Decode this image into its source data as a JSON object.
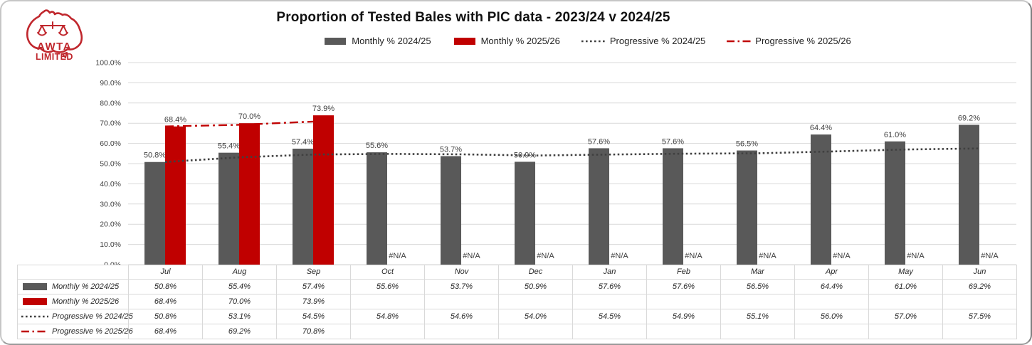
{
  "logo": {
    "name": "AWTA Limited",
    "line1": "AWTA",
    "line2": "LIMITED",
    "color": "#c0272d"
  },
  "title": "Proportion of Tested Bales with PIC data - 2023/24 v 2024/25",
  "colors": {
    "bar_gray": "#595959",
    "bar_red": "#c00000",
    "dotted_line": "#404040",
    "dashdot_line": "#c00000",
    "data_label": "#404040",
    "grid": "#d9d9d9",
    "axis_text": "#404040",
    "table_text": "#262626"
  },
  "chart_data": {
    "type": "bar",
    "title": "Proportion of Tested Bales with PIC data - 2023/24 v 2024/25",
    "categories": [
      "Jul",
      "Aug",
      "Sep",
      "Oct",
      "Nov",
      "Dec",
      "Jan",
      "Feb",
      "Mar",
      "Apr",
      "May",
      "Jun"
    ],
    "xlabel": "",
    "ylabel": "",
    "ylim": [
      0,
      100
    ],
    "ytick_step": 10,
    "ytick_suffix": "%",
    "grid": true,
    "legend_position": "top",
    "na_label": "#N/A",
    "series": [
      {
        "name": "Monthly % 2024/25",
        "type": "bar",
        "style": "bar",
        "color": "#595959",
        "values": [
          50.8,
          55.4,
          57.4,
          55.6,
          53.7,
          50.9,
          57.6,
          57.6,
          56.5,
          64.4,
          61.0,
          69.2
        ],
        "labels": [
          "50.8%",
          "55.4%",
          "57.4%",
          "55.6%",
          "53.7%",
          "50.9%",
          "57.6%",
          "57.6%",
          "56.5%",
          "64.4%",
          "61.0%",
          "69.2%"
        ],
        "table_values": [
          "50.8%",
          "55.4%",
          "57.4%",
          "55.6%",
          "53.7%",
          "50.9%",
          "57.6%",
          "57.6%",
          "56.5%",
          "64.4%",
          "61.0%",
          "69.2%"
        ]
      },
      {
        "name": "Monthly % 2025/26",
        "type": "bar",
        "style": "bar",
        "color": "#c00000",
        "values": [
          68.4,
          70.0,
          73.9,
          null,
          null,
          null,
          null,
          null,
          null,
          null,
          null,
          null
        ],
        "labels": [
          "68.4%",
          "70.0%",
          "73.9%",
          "#N/A",
          "#N/A",
          "#N/A",
          "#N/A",
          "#N/A",
          "#N/A",
          "#N/A",
          "#N/A",
          "#N/A"
        ],
        "table_values": [
          "68.4%",
          "70.0%",
          "73.9%",
          "",
          "",
          "",
          "",
          "",
          "",
          "",
          "",
          ""
        ]
      },
      {
        "name": "Progressive % 2024/25",
        "type": "line",
        "style": "dotted",
        "color": "#404040",
        "values": [
          50.8,
          53.1,
          54.5,
          54.8,
          54.6,
          54.0,
          54.5,
          54.9,
          55.1,
          56.0,
          57.0,
          57.5
        ],
        "table_values": [
          "50.8%",
          "53.1%",
          "54.5%",
          "54.8%",
          "54.6%",
          "54.0%",
          "54.5%",
          "54.9%",
          "55.1%",
          "56.0%",
          "57.0%",
          "57.5%"
        ]
      },
      {
        "name": "Progressive % 2025/26",
        "type": "line",
        "style": "dashdot",
        "color": "#c00000",
        "values": [
          68.4,
          69.2,
          70.8,
          null,
          null,
          null,
          null,
          null,
          null,
          null,
          null,
          null
        ],
        "table_values": [
          "68.4%",
          "69.2%",
          "70.8%",
          "",
          "",
          "",
          "",
          "",
          "",
          "",
          "",
          ""
        ]
      }
    ]
  }
}
